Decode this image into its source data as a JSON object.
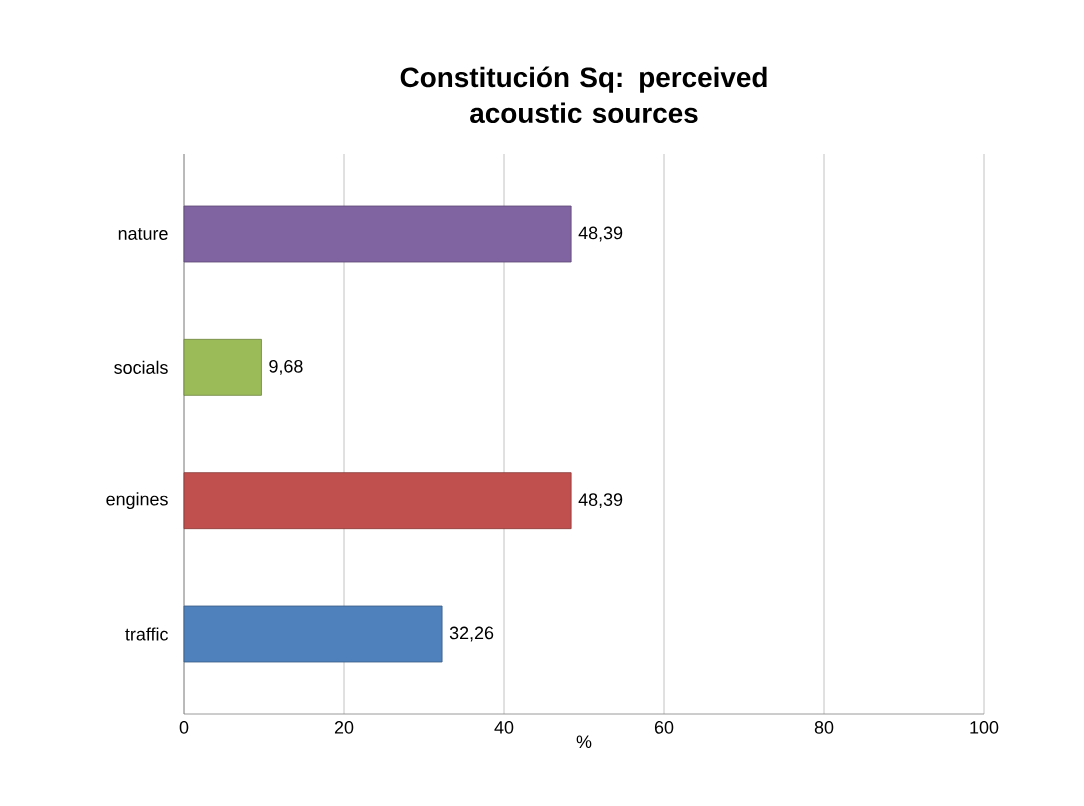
{
  "chart_data": {
    "type": "bar",
    "orientation": "horizontal",
    "title": "Constitución Sq: perceived acoustic sources",
    "xlabel": "%",
    "categories": [
      "nature",
      "socials",
      "engines",
      "traffic"
    ],
    "values": [
      48.39,
      9.68,
      48.39,
      32.26
    ],
    "colors": [
      "#8064a2",
      "#9bbb59",
      "#c0504d",
      "#4f81bd"
    ],
    "value_labels": [
      "48,39",
      "9,68",
      "48,39",
      "32,26"
    ],
    "xlim": [
      0,
      100
    ],
    "xticks": [
      0,
      20,
      40,
      60,
      80,
      100
    ],
    "grid": "x"
  }
}
